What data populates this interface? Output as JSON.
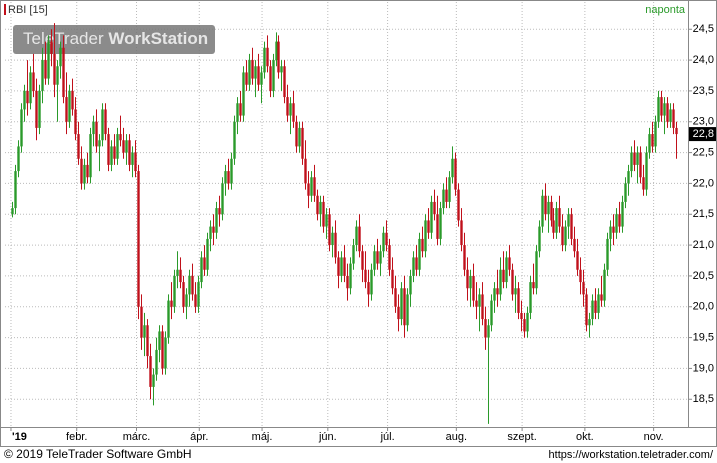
{
  "chart_data": {
    "type": "candlestick",
    "title": "RBI [15]",
    "period": "naponta",
    "watermark": [
      "TeleTrader",
      "WorkStation"
    ],
    "footer_left": "© 2019 TeleTrader Software GmbH",
    "footer_right": "https://workstation.teletrader.com/",
    "up_color": "#2a9a2a",
    "down_color": "#c0101a",
    "grid": true,
    "last_price": {
      "value": 22.8,
      "label": "22,8"
    },
    "ylim": [
      18.05,
      24.65
    ],
    "yticks": [
      {
        "value": 18.5,
        "label": "18,5"
      },
      {
        "value": 19,
        "label": "19,0"
      },
      {
        "value": 19.5,
        "label": "19,5"
      },
      {
        "value": 20,
        "label": "20,0"
      },
      {
        "value": 20.5,
        "label": "20,5"
      },
      {
        "value": 21,
        "label": "21,0"
      },
      {
        "value": 21.5,
        "label": "21,5"
      },
      {
        "value": 22,
        "label": "22,0"
      },
      {
        "value": 22.5,
        "label": "22,5"
      },
      {
        "value": 23,
        "label": "23,0"
      },
      {
        "value": 23.5,
        "label": "23,5"
      },
      {
        "value": 24,
        "label": "24,0"
      },
      {
        "value": 24.5,
        "label": "24,5"
      }
    ],
    "xlim": [
      -2.5,
      226
    ],
    "xticks": [
      {
        "value": 0,
        "label": "'19"
      },
      {
        "value": 22,
        "label": "febr."
      },
      {
        "value": 42,
        "label": "márc."
      },
      {
        "value": 63,
        "label": "ápr."
      },
      {
        "value": 84,
        "label": "máj."
      },
      {
        "value": 106,
        "label": "jún."
      },
      {
        "value": 126,
        "label": "júl."
      },
      {
        "value": 149,
        "label": "aug."
      },
      {
        "value": 171,
        "label": "szept."
      },
      {
        "value": 192,
        "label": "okt."
      },
      {
        "value": 215,
        "label": "nov."
      }
    ],
    "ohlc": [
      [
        21.5,
        21.7,
        21.45,
        21.6
      ],
      [
        21.6,
        22.3,
        21.5,
        22.2
      ],
      [
        22.2,
        22.7,
        22.1,
        22.6
      ],
      [
        22.6,
        23.3,
        22.5,
        23.2
      ],
      [
        23.2,
        23.6,
        23.0,
        23.5
      ],
      [
        23.5,
        24.0,
        23.1,
        23.3
      ],
      [
        23.3,
        23.9,
        23.2,
        23.8
      ],
      [
        23.8,
        24.1,
        23.4,
        23.5
      ],
      [
        23.5,
        23.7,
        22.7,
        22.9
      ],
      [
        22.9,
        23.6,
        22.8,
        23.5
      ],
      [
        23.5,
        24.2,
        23.3,
        24.0
      ],
      [
        24.0,
        24.3,
        23.6,
        23.7
      ],
      [
        23.7,
        24.4,
        23.6,
        24.3
      ],
      [
        24.3,
        24.5,
        23.9,
        24.1
      ],
      [
        24.1,
        24.6,
        23.4,
        23.6
      ],
      [
        23.6,
        24.0,
        23.0,
        23.9
      ],
      [
        23.9,
        24.3,
        23.7,
        24.2
      ],
      [
        24.2,
        24.4,
        23.3,
        23.4
      ],
      [
        23.4,
        23.8,
        22.8,
        23.0
      ],
      [
        23.0,
        23.6,
        22.9,
        23.5
      ],
      [
        23.5,
        23.7,
        23.1,
        23.2
      ],
      [
        23.2,
        23.4,
        22.7,
        22.8
      ],
      [
        22.8,
        23.0,
        22.3,
        22.4
      ],
      [
        22.4,
        22.6,
        21.9,
        22.0
      ],
      [
        22.0,
        22.4,
        21.9,
        22.3
      ],
      [
        22.3,
        22.5,
        22.0,
        22.1
      ],
      [
        22.1,
        22.9,
        22.0,
        22.8
      ],
      [
        22.8,
        23.1,
        22.6,
        23.0
      ],
      [
        23.0,
        23.2,
        22.5,
        22.6
      ],
      [
        22.6,
        22.8,
        22.2,
        22.7
      ],
      [
        22.7,
        23.3,
        22.6,
        23.2
      ],
      [
        23.2,
        23.3,
        22.7,
        22.8
      ],
      [
        22.8,
        22.9,
        22.2,
        22.3
      ],
      [
        22.3,
        22.7,
        22.2,
        22.6
      ],
      [
        22.6,
        22.8,
        22.3,
        22.4
      ],
      [
        22.4,
        22.9,
        22.3,
        22.8
      ],
      [
        22.8,
        23.1,
        22.6,
        22.7
      ],
      [
        22.7,
        22.9,
        22.4,
        22.5
      ],
      [
        22.5,
        22.8,
        22.3,
        22.7
      ],
      [
        22.7,
        22.8,
        22.2,
        22.3
      ],
      [
        22.3,
        22.6,
        22.1,
        22.5
      ],
      [
        22.5,
        22.7,
        22.1,
        22.2
      ],
      [
        22.2,
        22.3,
        19.8,
        20.0
      ],
      [
        20.0,
        20.2,
        19.3,
        19.5
      ],
      [
        19.5,
        19.9,
        19.2,
        19.7
      ],
      [
        19.7,
        19.8,
        19.0,
        19.2
      ],
      [
        19.2,
        19.4,
        18.5,
        18.7
      ],
      [
        18.7,
        19.0,
        18.4,
        18.9
      ],
      [
        18.9,
        19.5,
        18.8,
        19.3
      ],
      [
        19.3,
        19.7,
        19.1,
        19.6
      ],
      [
        19.6,
        19.7,
        18.9,
        19.0
      ],
      [
        19.0,
        19.6,
        18.9,
        19.5
      ],
      [
        19.5,
        20.2,
        19.4,
        20.1
      ],
      [
        20.1,
        20.4,
        19.8,
        20.0
      ],
      [
        20.0,
        20.6,
        19.9,
        20.5
      ],
      [
        20.5,
        20.9,
        20.3,
        20.6
      ],
      [
        20.6,
        20.8,
        20.3,
        20.4
      ],
      [
        20.4,
        20.5,
        19.9,
        20.0
      ],
      [
        20.0,
        20.3,
        19.8,
        20.2
      ],
      [
        20.2,
        20.6,
        20.0,
        20.5
      ],
      [
        20.5,
        20.7,
        20.1,
        20.2
      ],
      [
        20.2,
        20.4,
        19.9,
        20.0
      ],
      [
        20.0,
        20.5,
        19.9,
        20.4
      ],
      [
        20.4,
        20.9,
        20.3,
        20.8
      ],
      [
        20.8,
        21.0,
        20.5,
        20.6
      ],
      [
        20.6,
        21.2,
        20.5,
        21.1
      ],
      [
        21.1,
        21.4,
        20.9,
        21.3
      ],
      [
        21.3,
        21.5,
        21.0,
        21.2
      ],
      [
        21.2,
        21.7,
        21.1,
        21.6
      ],
      [
        21.6,
        21.8,
        21.3,
        21.5
      ],
      [
        21.5,
        22.1,
        21.4,
        22.0
      ],
      [
        22.0,
        22.3,
        21.8,
        22.2
      ],
      [
        22.2,
        22.4,
        21.9,
        22.0
      ],
      [
        22.0,
        22.5,
        21.9,
        22.4
      ],
      [
        22.4,
        23.1,
        22.3,
        23.0
      ],
      [
        23.0,
        23.4,
        22.8,
        23.3
      ],
      [
        23.3,
        23.5,
        23.0,
        23.1
      ],
      [
        23.1,
        23.9,
        23.0,
        23.8
      ],
      [
        23.8,
        24.0,
        23.5,
        23.6
      ],
      [
        23.6,
        24.1,
        23.5,
        24.0
      ],
      [
        24.0,
        24.2,
        23.6,
        23.7
      ],
      [
        23.7,
        24.0,
        23.4,
        23.9
      ],
      [
        23.9,
        24.1,
        23.5,
        23.6
      ],
      [
        23.6,
        23.9,
        23.3,
        23.8
      ],
      [
        23.8,
        24.3,
        23.7,
        24.2
      ],
      [
        24.2,
        24.4,
        23.8,
        23.9
      ],
      [
        23.9,
        24.0,
        23.4,
        23.5
      ],
      [
        23.5,
        24.1,
        23.4,
        24.0
      ],
      [
        24.0,
        24.45,
        23.9,
        24.3
      ],
      [
        24.3,
        24.4,
        23.7,
        23.8
      ],
      [
        23.8,
        24.0,
        23.5,
        23.9
      ],
      [
        23.9,
        24.0,
        23.3,
        23.4
      ],
      [
        23.4,
        23.6,
        23.0,
        23.1
      ],
      [
        23.1,
        23.4,
        22.8,
        23.3
      ],
      [
        23.3,
        23.5,
        22.9,
        23.0
      ],
      [
        23.0,
        23.1,
        22.5,
        22.6
      ],
      [
        22.6,
        23.0,
        22.5,
        22.9
      ],
      [
        22.9,
        23.0,
        22.3,
        22.4
      ],
      [
        22.4,
        22.7,
        21.9,
        22.0
      ],
      [
        22.0,
        22.2,
        21.6,
        21.8
      ],
      [
        21.8,
        22.2,
        21.7,
        22.1
      ],
      [
        22.1,
        22.3,
        21.7,
        21.8
      ],
      [
        21.8,
        21.9,
        21.4,
        21.5
      ],
      [
        21.5,
        21.8,
        21.3,
        21.7
      ],
      [
        21.7,
        21.8,
        21.2,
        21.3
      ],
      [
        21.3,
        21.6,
        21.1,
        21.5
      ],
      [
        21.5,
        21.6,
        20.9,
        21.0
      ],
      [
        21.0,
        21.3,
        20.8,
        21.2
      ],
      [
        21.2,
        21.4,
        20.7,
        20.8
      ],
      [
        20.8,
        20.9,
        20.3,
        20.5
      ],
      [
        20.5,
        20.9,
        20.4,
        20.8
      ],
      [
        20.8,
        21.0,
        20.4,
        20.5
      ],
      [
        20.5,
        20.7,
        20.1,
        20.3
      ],
      [
        20.3,
        20.8,
        20.2,
        20.7
      ],
      [
        20.7,
        21.1,
        20.6,
        21.0
      ],
      [
        21.0,
        21.4,
        20.9,
        21.3
      ],
      [
        21.3,
        21.5,
        20.8,
        20.9
      ],
      [
        20.9,
        21.0,
        20.4,
        20.6
      ],
      [
        20.6,
        20.9,
        20.3,
        20.4
      ],
      [
        20.4,
        20.6,
        20.0,
        20.2
      ],
      [
        20.2,
        20.7,
        20.1,
        20.6
      ],
      [
        20.6,
        21.0,
        20.5,
        20.9
      ],
      [
        20.9,
        21.1,
        20.6,
        20.7
      ],
      [
        20.7,
        21.0,
        20.5,
        20.9
      ],
      [
        20.9,
        21.3,
        20.8,
        21.2
      ],
      [
        21.2,
        21.4,
        20.9,
        21.0
      ],
      [
        21.0,
        21.1,
        20.5,
        20.6
      ],
      [
        20.6,
        20.8,
        20.2,
        20.3
      ],
      [
        20.3,
        20.5,
        19.9,
        20.0
      ],
      [
        20.0,
        20.2,
        19.6,
        19.8
      ],
      [
        19.8,
        20.4,
        19.7,
        20.3
      ],
      [
        20.3,
        20.5,
        19.5,
        19.7
      ],
      [
        19.7,
        20.3,
        19.6,
        20.2
      ],
      [
        20.2,
        20.6,
        20.0,
        20.5
      ],
      [
        20.5,
        20.9,
        20.4,
        20.8
      ],
      [
        20.8,
        21.0,
        20.5,
        20.6
      ],
      [
        20.6,
        21.2,
        20.5,
        21.1
      ],
      [
        21.1,
        21.3,
        20.8,
        20.9
      ],
      [
        20.9,
        21.5,
        20.8,
        21.4
      ],
      [
        21.4,
        21.6,
        21.1,
        21.2
      ],
      [
        21.2,
        21.8,
        21.1,
        21.7
      ],
      [
        21.7,
        21.9,
        21.4,
        21.5
      ],
      [
        21.5,
        21.8,
        21.0,
        21.1
      ],
      [
        21.1,
        21.7,
        21.0,
        21.6
      ],
      [
        21.6,
        22.0,
        21.5,
        21.9
      ],
      [
        21.9,
        22.1,
        21.6,
        21.7
      ],
      [
        21.7,
        22.2,
        21.6,
        22.1
      ],
      [
        22.1,
        22.6,
        22.0,
        22.4
      ],
      [
        22.4,
        22.5,
        21.8,
        21.9
      ],
      [
        21.9,
        22.0,
        21.3,
        21.4
      ],
      [
        21.4,
        21.6,
        20.9,
        21.0
      ],
      [
        21.0,
        21.2,
        20.5,
        20.6
      ],
      [
        20.6,
        20.8,
        20.1,
        20.3
      ],
      [
        20.3,
        20.6,
        20.0,
        20.5
      ],
      [
        20.5,
        20.7,
        20.0,
        20.1
      ],
      [
        20.1,
        20.4,
        19.8,
        20.0
      ],
      [
        20.0,
        20.3,
        19.6,
        20.2
      ],
      [
        20.2,
        20.4,
        19.7,
        19.8
      ],
      [
        19.8,
        20.0,
        19.3,
        19.5
      ],
      [
        19.5,
        19.8,
        18.1,
        19.7
      ],
      [
        19.7,
        20.2,
        19.6,
        20.1
      ],
      [
        20.1,
        20.4,
        19.9,
        20.3
      ],
      [
        20.3,
        20.6,
        20.0,
        20.2
      ],
      [
        20.2,
        20.8,
        20.1,
        20.6
      ],
      [
        20.6,
        20.9,
        20.3,
        20.4
      ],
      [
        20.4,
        20.9,
        20.3,
        20.8
      ],
      [
        20.8,
        21.0,
        20.5,
        20.6
      ],
      [
        20.6,
        20.7,
        20.1,
        20.2
      ],
      [
        20.2,
        20.5,
        19.9,
        20.3
      ],
      [
        20.3,
        20.4,
        19.8,
        19.9
      ],
      [
        19.9,
        20.1,
        19.6,
        19.8
      ],
      [
        19.8,
        19.9,
        19.5,
        19.6
      ],
      [
        19.6,
        20.0,
        19.5,
        19.9
      ],
      [
        19.9,
        20.5,
        19.8,
        20.4
      ],
      [
        20.4,
        20.7,
        20.2,
        20.3
      ],
      [
        20.3,
        21.0,
        20.2,
        20.9
      ],
      [
        20.9,
        21.4,
        20.8,
        21.3
      ],
      [
        21.3,
        21.9,
        21.2,
        21.8
      ],
      [
        21.8,
        22.0,
        21.4,
        21.5
      ],
      [
        21.5,
        21.8,
        21.2,
        21.7
      ],
      [
        21.7,
        21.8,
        21.3,
        21.4
      ],
      [
        21.4,
        21.6,
        21.1,
        21.2
      ],
      [
        21.2,
        21.7,
        21.1,
        21.6
      ],
      [
        21.6,
        21.8,
        21.2,
        21.3
      ],
      [
        21.3,
        21.5,
        20.9,
        21.0
      ],
      [
        21.0,
        21.4,
        20.9,
        21.3
      ],
      [
        21.3,
        21.6,
        21.1,
        21.5
      ],
      [
        21.5,
        21.6,
        21.0,
        21.1
      ],
      [
        21.1,
        21.3,
        20.8,
        20.9
      ],
      [
        20.9,
        21.1,
        20.5,
        20.6
      ],
      [
        20.6,
        20.8,
        20.2,
        20.4
      ],
      [
        20.4,
        20.6,
        20.0,
        20.2
      ],
      [
        20.2,
        20.3,
        19.6,
        19.7
      ],
      [
        19.7,
        19.9,
        19.5,
        19.8
      ],
      [
        19.8,
        20.2,
        19.7,
        20.1
      ],
      [
        20.1,
        20.3,
        19.8,
        19.9
      ],
      [
        19.9,
        20.3,
        19.8,
        20.2
      ],
      [
        20.2,
        20.5,
        20.0,
        20.1
      ],
      [
        20.1,
        20.7,
        20.0,
        20.6
      ],
      [
        20.6,
        21.2,
        20.5,
        21.1
      ],
      [
        21.1,
        21.4,
        20.9,
        21.3
      ],
      [
        21.3,
        21.5,
        21.0,
        21.2
      ],
      [
        21.2,
        21.6,
        21.1,
        21.5
      ],
      [
        21.5,
        21.7,
        21.2,
        21.3
      ],
      [
        21.3,
        21.8,
        21.2,
        21.7
      ],
      [
        21.7,
        22.1,
        21.6,
        22.0
      ],
      [
        22.0,
        22.3,
        21.8,
        22.2
      ],
      [
        22.2,
        22.6,
        22.1,
        22.5
      ],
      [
        22.5,
        22.7,
        22.2,
        22.3
      ],
      [
        22.3,
        22.6,
        22.0,
        22.5
      ],
      [
        22.5,
        22.6,
        22.0,
        22.1
      ],
      [
        22.1,
        22.3,
        21.8,
        21.9
      ],
      [
        21.9,
        22.6,
        21.8,
        22.5
      ],
      [
        22.5,
        22.9,
        22.4,
        22.8
      ],
      [
        22.8,
        23.0,
        22.5,
        22.6
      ],
      [
        22.6,
        23.1,
        22.5,
        23.0
      ],
      [
        23.0,
        23.5,
        22.9,
        23.4
      ],
      [
        23.4,
        23.5,
        23.0,
        23.1
      ],
      [
        23.1,
        23.4,
        22.8,
        23.3
      ],
      [
        23.3,
        23.4,
        22.9,
        23.0
      ],
      [
        23.0,
        23.3,
        22.9,
        23.2
      ],
      [
        23.2,
        23.3,
        22.8,
        22.9
      ],
      [
        22.9,
        23.0,
        22.4,
        22.8
      ]
    ]
  }
}
